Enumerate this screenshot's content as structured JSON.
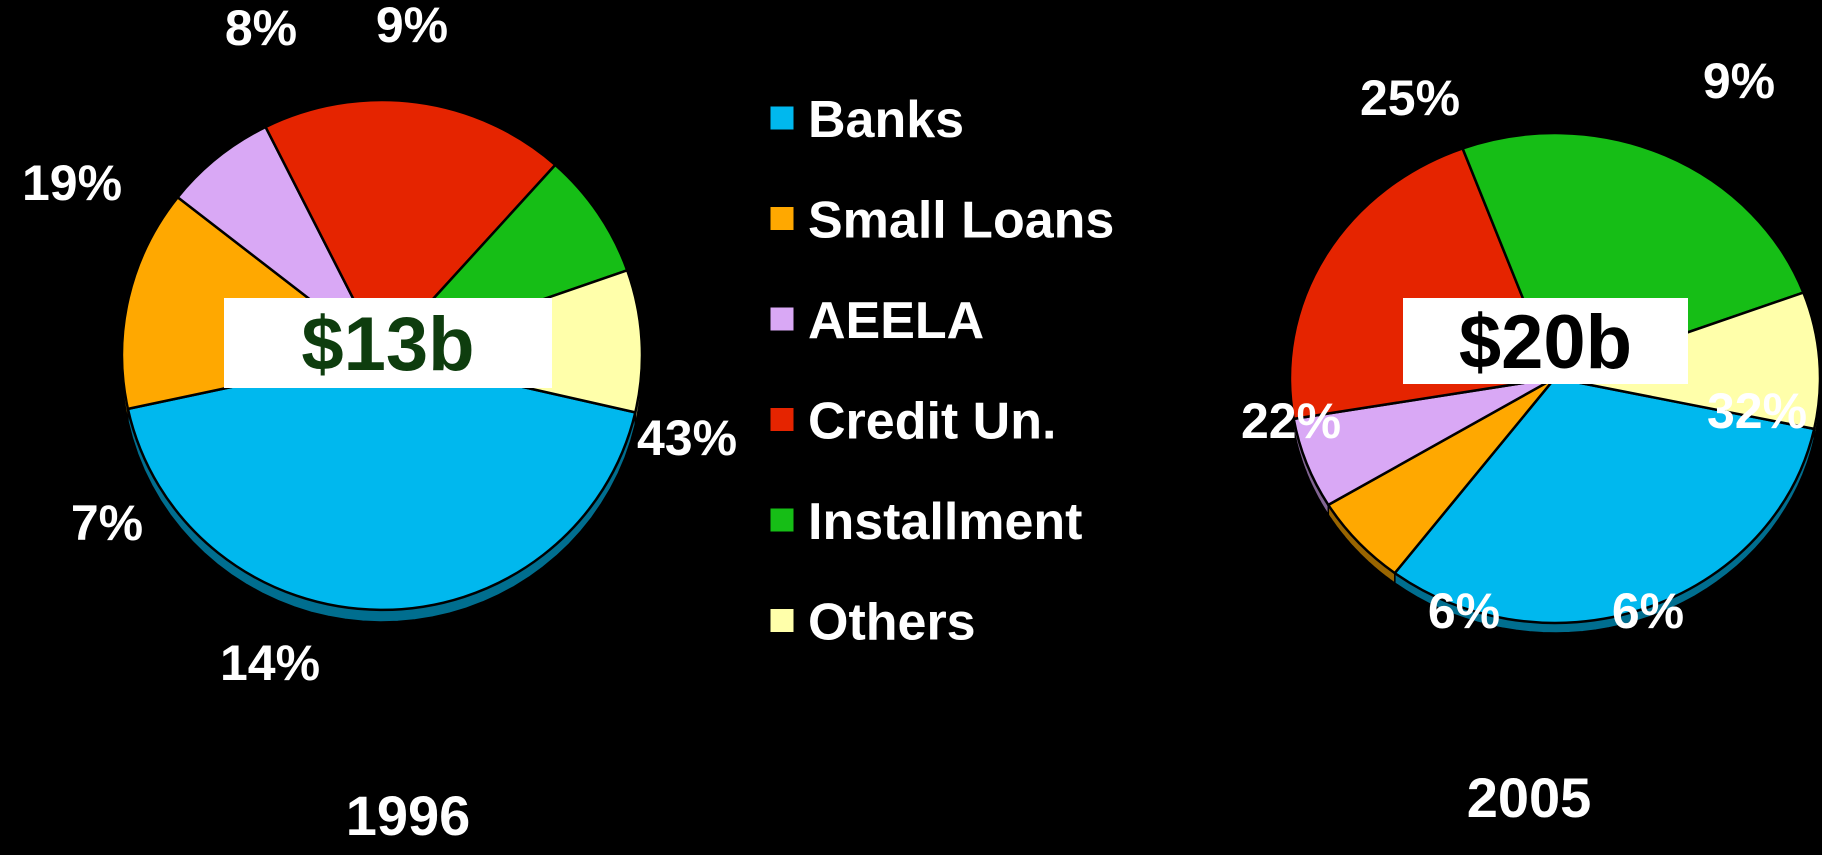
{
  "chart_data": [
    {
      "type": "pie",
      "label": "1996",
      "total": "$13b",
      "total_color": "#0e3d0e",
      "categories": [
        "Banks",
        "Small Loans",
        "AEELA",
        "Credit Un.",
        "Installment",
        "Others"
      ],
      "values": [
        43,
        14,
        7,
        19,
        8,
        9
      ],
      "labels": [
        "43%",
        "14%",
        "7%",
        "19%",
        "8%",
        "9%"
      ]
    },
    {
      "type": "pie",
      "label": "2005",
      "total": "$20b",
      "total_color": "#000000",
      "categories": [
        "Banks",
        "Small Loans",
        "AEELA",
        "Credit Un.",
        "Installment",
        "Others"
      ],
      "values": [
        32,
        6,
        6,
        22,
        25,
        9
      ],
      "labels": [
        "32%",
        "6%",
        "6%",
        "22%",
        "25%",
        "9%"
      ]
    }
  ],
  "legend": {
    "placement": "center",
    "items": [
      {
        "label": "Banks",
        "color": "#00b8ee"
      },
      {
        "label": "Small Loans",
        "color": "#ffa800"
      },
      {
        "label": "AEELA",
        "color": "#d9a8f5"
      },
      {
        "label": "Credit Un.",
        "color": "#e52400"
      },
      {
        "label": "Installment",
        "color": "#16be16"
      },
      {
        "label": "Others",
        "color": "#ffffaa"
      }
    ]
  },
  "colors": {
    "background": "#000000",
    "text": "#ffffff",
    "label_box": "#ffffff"
  }
}
